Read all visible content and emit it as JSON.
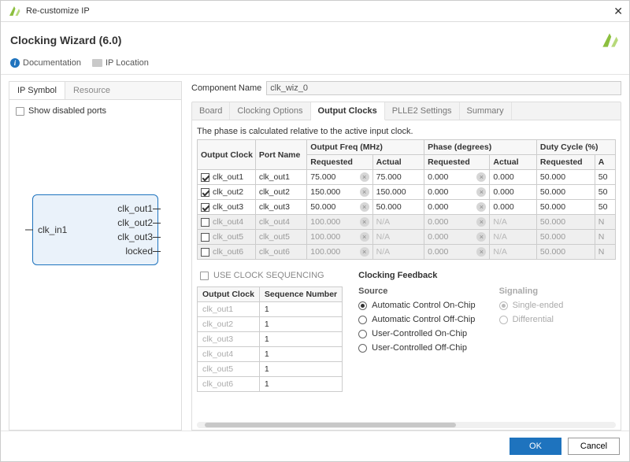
{
  "window": {
    "title": "Re-customize IP"
  },
  "header": {
    "title": "Clocking Wizard (6.0)"
  },
  "toolbar": {
    "documentation": "Documentation",
    "ip_location": "IP Location"
  },
  "left": {
    "tabs": {
      "ip_symbol": "IP Symbol",
      "resource": "Resource",
      "active": "ip_symbol"
    },
    "show_disabled_ports": "Show disabled ports",
    "block": {
      "in": "clk_in1",
      "outs": [
        "clk_out1",
        "clk_out2",
        "clk_out3",
        "locked"
      ]
    }
  },
  "component": {
    "label": "Component Name",
    "value": "clk_wiz_0"
  },
  "tabs": {
    "items": [
      "Board",
      "Clocking Options",
      "Output Clocks",
      "PLLE2 Settings",
      "Summary"
    ],
    "active_index": 2
  },
  "note": "The phase is calculated relative to the active input clock.",
  "table": {
    "group_headers": {
      "oc": "Output Clock",
      "pn": "Port Name",
      "of": "Output Freq (MHz)",
      "ph": "Phase (degrees)",
      "dc": "Duty Cycle (%)"
    },
    "sub_headers": {
      "req": "Requested",
      "act": "Actual",
      "act_trunc": "A"
    },
    "rows": [
      {
        "enabled": true,
        "oc": "clk_out1",
        "pn": "clk_out1",
        "of_req": "75.000",
        "of_act": "75.000",
        "ph_req": "0.000",
        "ph_act": "0.000",
        "dc_req": "50.000",
        "dc_act": "50"
      },
      {
        "enabled": true,
        "oc": "clk_out2",
        "pn": "clk_out2",
        "of_req": "150.000",
        "of_act": "150.000",
        "ph_req": "0.000",
        "ph_act": "0.000",
        "dc_req": "50.000",
        "dc_act": "50"
      },
      {
        "enabled": true,
        "oc": "clk_out3",
        "pn": "clk_out3",
        "of_req": "50.000",
        "of_act": "50.000",
        "ph_req": "0.000",
        "ph_act": "0.000",
        "dc_req": "50.000",
        "dc_act": "50"
      },
      {
        "enabled": false,
        "oc": "clk_out4",
        "pn": "clk_out4",
        "of_req": "100.000",
        "of_act": "N/A",
        "ph_req": "0.000",
        "ph_act": "N/A",
        "dc_req": "50.000",
        "dc_act": "N"
      },
      {
        "enabled": false,
        "oc": "clk_out5",
        "pn": "clk_out5",
        "of_req": "100.000",
        "of_act": "N/A",
        "ph_req": "0.000",
        "ph_act": "N/A",
        "dc_req": "50.000",
        "dc_act": "N"
      },
      {
        "enabled": false,
        "oc": "clk_out6",
        "pn": "clk_out6",
        "of_req": "100.000",
        "of_act": "N/A",
        "ph_req": "0.000",
        "ph_act": "N/A",
        "dc_req": "50.000",
        "dc_act": "N"
      }
    ]
  },
  "sequencing": {
    "title": "USE CLOCK SEQUENCING",
    "headers": {
      "oc": "Output Clock",
      "sn": "Sequence Number"
    },
    "rows": [
      {
        "oc": "clk_out1",
        "sn": "1"
      },
      {
        "oc": "clk_out2",
        "sn": "1"
      },
      {
        "oc": "clk_out3",
        "sn": "1"
      },
      {
        "oc": "clk_out4",
        "sn": "1"
      },
      {
        "oc": "clk_out5",
        "sn": "1"
      },
      {
        "oc": "clk_out6",
        "sn": "1"
      }
    ]
  },
  "feedback": {
    "title": "Clocking Feedback",
    "source": {
      "label": "Source",
      "options": [
        "Automatic Control On-Chip",
        "Automatic Control Off-Chip",
        "User-Controlled On-Chip",
        "User-Controlled Off-Chip"
      ],
      "selected": 0
    },
    "signaling": {
      "label": "Signaling",
      "options": [
        "Single-ended",
        "Differential"
      ],
      "selected": 0
    }
  },
  "footer": {
    "ok": "OK",
    "cancel": "Cancel"
  },
  "colors": {
    "accent": "#1e73be",
    "logo": "#8cbf3f"
  }
}
